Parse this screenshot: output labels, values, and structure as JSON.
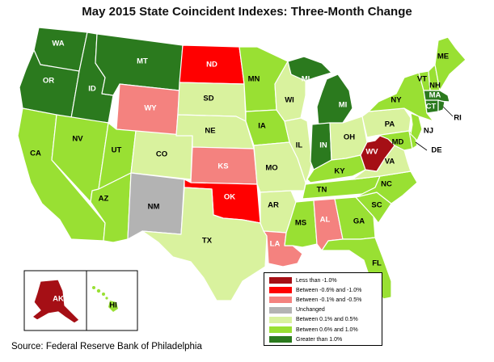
{
  "title": "May 2015 State Coincident Indexes: Three-Month Change",
  "source": "Source: Federal Reserve Bank of Philadelphia",
  "colors": {
    "lt_neg1": "#a50f15",
    "neg06_1": "#ff0000",
    "neg01_05": "#f4827f",
    "unchanged": "#b3b3b3",
    "pos01_05": "#d9f29e",
    "pos06_10": "#99e033",
    "gt1": "#2b7a1e"
  },
  "legend": [
    {
      "key": "lt_neg1",
      "label": "Less than -1.0%"
    },
    {
      "key": "neg06_1",
      "label": "Between -0.6% and -1.0%"
    },
    {
      "key": "neg01_05",
      "label": "Between -0.1% and -0.5%"
    },
    {
      "key": "unchanged",
      "label": "Unchanged"
    },
    {
      "key": "pos01_05",
      "label": "Between 0.1% and 0.5%"
    },
    {
      "key": "pos06_10",
      "label": "Between 0.6% and 1.0%"
    },
    {
      "key": "gt1",
      "label": "Greater than 1.0%"
    }
  ],
  "states": {
    "WA": {
      "label": "WA",
      "cat": "gt1"
    },
    "OR": {
      "label": "OR",
      "cat": "gt1"
    },
    "ID": {
      "label": "ID",
      "cat": "gt1"
    },
    "MT": {
      "label": "MT",
      "cat": "gt1"
    },
    "ND": {
      "label": "ND",
      "cat": "neg06_1"
    },
    "MN": {
      "label": "MN",
      "cat": "pos06_10"
    },
    "WI": {
      "label": "WI",
      "cat": "pos01_05"
    },
    "MI": {
      "label": "MI",
      "cat": "gt1"
    },
    "WY": {
      "label": "WY",
      "cat": "neg01_05"
    },
    "SD": {
      "label": "SD",
      "cat": "pos01_05"
    },
    "NE": {
      "label": "NE",
      "cat": "pos01_05"
    },
    "IA": {
      "label": "IA",
      "cat": "pos06_10"
    },
    "IL": {
      "label": "IL",
      "cat": "pos01_05"
    },
    "IN": {
      "label": "IN",
      "cat": "gt1"
    },
    "OH": {
      "label": "OH",
      "cat": "pos01_05"
    },
    "PA": {
      "label": "PA",
      "cat": "pos01_05"
    },
    "NY": {
      "label": "NY",
      "cat": "pos06_10"
    },
    "VT": {
      "label": "VT",
      "cat": "pos06_10"
    },
    "NH": {
      "label": "NH",
      "cat": "pos06_10"
    },
    "ME": {
      "label": "ME",
      "cat": "pos06_10"
    },
    "MA": {
      "label": "MA",
      "cat": "gt1"
    },
    "CT": {
      "label": "CT",
      "cat": "gt1"
    },
    "RI": {
      "label": "RI",
      "cat": "gt1"
    },
    "NJ": {
      "label": "NJ",
      "cat": "pos06_10"
    },
    "DE": {
      "label": "DE",
      "cat": "pos06_10"
    },
    "MD": {
      "label": "MD",
      "cat": "pos06_10"
    },
    "WV": {
      "label": "WV",
      "cat": "lt_neg1"
    },
    "VA": {
      "label": "VA",
      "cat": "pos01_05"
    },
    "KY": {
      "label": "KY",
      "cat": "pos06_10"
    },
    "TN": {
      "label": "TN",
      "cat": "pos06_10"
    },
    "NC": {
      "label": "NC",
      "cat": "pos06_10"
    },
    "SC": {
      "label": "SC",
      "cat": "pos06_10"
    },
    "GA": {
      "label": "GA",
      "cat": "pos06_10"
    },
    "FL": {
      "label": "FL",
      "cat": "pos06_10"
    },
    "AL": {
      "label": "AL",
      "cat": "neg01_05"
    },
    "MS": {
      "label": "MS",
      "cat": "pos06_10"
    },
    "LA": {
      "label": "LA",
      "cat": "neg01_05"
    },
    "AR": {
      "label": "AR",
      "cat": "pos01_05"
    },
    "MO": {
      "label": "MO",
      "cat": "pos01_05"
    },
    "KS": {
      "label": "KS",
      "cat": "neg01_05"
    },
    "OK": {
      "label": "OK",
      "cat": "neg06_1"
    },
    "TX": {
      "label": "TX",
      "cat": "pos01_05"
    },
    "NM": {
      "label": "NM",
      "cat": "unchanged"
    },
    "CO": {
      "label": "CO",
      "cat": "pos01_05"
    },
    "UT": {
      "label": "UT",
      "cat": "pos06_10"
    },
    "AZ": {
      "label": "AZ",
      "cat": "pos06_10"
    },
    "NV": {
      "label": "NV",
      "cat": "pos06_10"
    },
    "CA": {
      "label": "CA",
      "cat": "pos06_10"
    },
    "AK": {
      "label": "AK",
      "cat": "lt_neg1"
    },
    "HI": {
      "label": "HI",
      "cat": "pos06_10"
    }
  }
}
